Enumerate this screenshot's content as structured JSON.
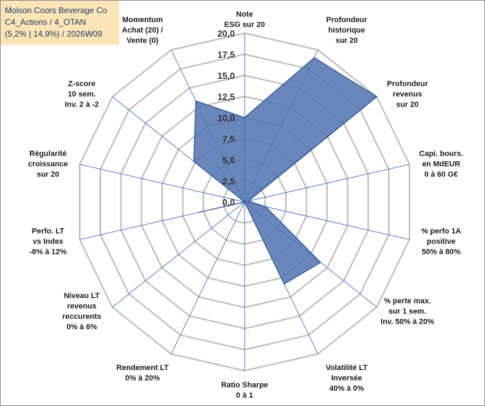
{
  "title": {
    "line1": "Molson Coors Beverage Co",
    "line2": "C4_Actions / 4_OTAN",
    "line3": "(5,2% | 14,9%) / 2026W09"
  },
  "chart_data": {
    "type": "radar",
    "axis_max": 20,
    "ticks": [
      "0,0",
      "2,5",
      "5,0",
      "7,5",
      "10,0",
      "12,5",
      "15,0",
      "17,5",
      "20,0"
    ],
    "axes": [
      {
        "label": [
          "Note",
          "ESG sur 20"
        ],
        "value": 10.0
      },
      {
        "label": [
          "Profondeur",
          "historique",
          "sur 20"
        ],
        "value": 19.0
      },
      {
        "label": [
          "Profondeur",
          "revenus",
          "sur 20"
        ],
        "value": 20.0
      },
      {
        "label": [
          "Capi. bours.",
          "en MdEUR",
          "0 à 60 G€"
        ],
        "value": 0.5
      },
      {
        "label": [
          "% perfo 1A",
          "positive",
          "50% à 80%"
        ],
        "value": 2.6
      },
      {
        "label": [
          "% perte max.",
          "sur 1 sem.",
          "Inv. 50% à 20%"
        ],
        "value": 11.5
      },
      {
        "label": [
          "Volatilité LT",
          "Inversée",
          "40% à 0%"
        ],
        "value": 10.8
      },
      {
        "label": [
          "Ratio Sharpe",
          "0 à 1"
        ],
        "value": 0.0
      },
      {
        "label": [
          "Rendement LT",
          "0% à 20%"
        ],
        "value": 0.0
      },
      {
        "label": [
          "Niveau LT",
          "revenus",
          "reccurents",
          "0% à 6%"
        ],
        "value": 0.0
      },
      {
        "label": [
          "Perfo. LT",
          "vs Index",
          "-8% à 12%"
        ],
        "value": 5.6
      },
      {
        "label": [
          "Régularité",
          "croissance",
          "sur 20"
        ],
        "value": 0.0
      },
      {
        "label": [
          "Z-score",
          "10 sem.",
          "Inv. 2 à -2"
        ],
        "value": 7.7
      },
      {
        "label": [
          "Momentum",
          "Achat (20) /",
          "Vente (0)"
        ],
        "value": 13.3
      }
    ],
    "colors": {
      "fill": "#4f72ae",
      "stroke": "#2f528f",
      "grid": "#bfbfbf",
      "spoke": "#4472c4"
    }
  }
}
